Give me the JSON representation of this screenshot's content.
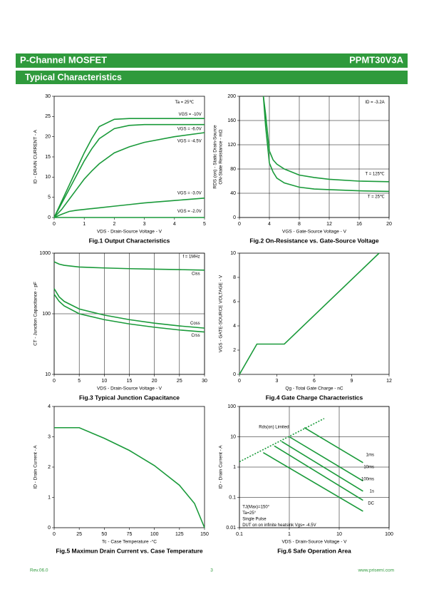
{
  "header": {
    "left": "P-Channel MOSFET",
    "right": "PPMT30V3A"
  },
  "section": "Typical Characteristics",
  "footer": {
    "rev": "Rev.06.0",
    "page": "3",
    "site": "www.prisemi.com"
  },
  "chart_data": [
    {
      "type": "line",
      "title": "Fig.1 Output Characteristics",
      "x_label": "VDS - Drain-Source Voltage - V",
      "y_label": "ID - DRAIN CURRENT - A",
      "xlim": [
        0,
        5
      ],
      "xticks": [
        0,
        1,
        2,
        3,
        4,
        5
      ],
      "ylim": [
        0,
        30
      ],
      "yticks": [
        0,
        5,
        10,
        15,
        20,
        25,
        30
      ],
      "grid": false,
      "annotations": [
        "Ta = 25℃"
      ],
      "x": [
        0,
        0.25,
        0.5,
        0.75,
        1,
        1.25,
        1.5,
        2,
        2.5,
        3,
        4,
        5
      ],
      "series": [
        {
          "name": "VGS = -10V",
          "color": "#1a9a3a",
          "values": [
            0,
            4,
            8,
            12,
            16,
            19.5,
            22.5,
            24.3,
            24.5,
            24.5,
            24.5,
            24.5
          ]
        },
        {
          "name": "VGS = -6.0V",
          "color": "#1a9a3a",
          "values": [
            0,
            3.5,
            7,
            10.5,
            14,
            17,
            19.5,
            22,
            22.8,
            23,
            23,
            23
          ]
        },
        {
          "name": "VGS = -4.5V",
          "color": "#1a9a3a",
          "values": [
            0,
            2,
            4.5,
            7,
            9.5,
            11.5,
            13.3,
            16,
            17.5,
            18.6,
            20,
            21
          ]
        },
        {
          "name": "VGS = -3.0V",
          "color": "#1a9a3a",
          "values": [
            0,
            0.8,
            1.5,
            1.8,
            2,
            2.2,
            2.4,
            2.8,
            3.2,
            3.6,
            4.2,
            4.8
          ]
        },
        {
          "name": "VGS = -2.0V",
          "color": "#1a9a3a",
          "values": [
            0,
            0,
            0,
            0,
            0,
            0,
            0,
            0,
            0,
            0,
            0,
            0
          ]
        }
      ]
    },
    {
      "type": "line",
      "title": "Fig.2 On-Resistance vs. Gate-Source Voltage",
      "x_label": "VGS - Gate-Source Voltage - V",
      "y_label": [
        "RDS (on) - Static Drain-Source",
        "ON-State Resistance - mΩ"
      ],
      "xlim": [
        0,
        20
      ],
      "xticks": [
        0,
        4,
        8,
        12,
        16,
        20
      ],
      "ylim": [
        0,
        200
      ],
      "yticks": [
        0,
        40,
        80,
        120,
        160,
        200
      ],
      "grid": true,
      "annotations": [
        "ID = -3.2A"
      ],
      "x": [
        3.2,
        3.5,
        4,
        4.5,
        5,
        6,
        8,
        10,
        12,
        16,
        20
      ],
      "series": [
        {
          "name": "T = 125℃",
          "color": "#1a9a3a",
          "values": [
            200,
            170,
            110,
            95,
            88,
            80,
            70,
            66,
            63,
            60,
            59
          ]
        },
        {
          "name": "T = 25℃",
          "color": "#1a9a3a",
          "values": [
            200,
            150,
            90,
            75,
            65,
            57,
            50,
            47,
            46,
            44,
            43
          ]
        }
      ]
    },
    {
      "type": "line",
      "title": "Fig.3 Typical Junction Capacitance",
      "x_label": "VDS - Drain-Source Voltage - V",
      "y_label": "CT - Junction Capacitance - pF",
      "xlim": [
        0,
        30
      ],
      "xticks": [
        0,
        5,
        10,
        15,
        20,
        25,
        30
      ],
      "ylim": [
        10,
        1000
      ],
      "ylog": true,
      "yticks": [
        10,
        100,
        1000
      ],
      "grid": true,
      "annotations": [
        "f = 1MHz"
      ],
      "x": [
        0,
        1,
        2,
        5,
        10,
        15,
        20,
        25,
        30
      ],
      "series": [
        {
          "name": "Ciss",
          "color": "#1a9a3a",
          "values": [
            720,
            660,
            630,
            590,
            570,
            555,
            545,
            535,
            525
          ]
        },
        {
          "name": "Coss",
          "color": "#1a9a3a",
          "values": [
            260,
            190,
            160,
            120,
            95,
            80,
            70,
            63,
            58
          ]
        },
        {
          "name": "Crss",
          "color": "#1a9a3a",
          "values": [
            210,
            160,
            135,
            100,
            80,
            68,
            60,
            54,
            50
          ]
        }
      ]
    },
    {
      "type": "line",
      "title": "Fig.4 Gate Charge Characteristics",
      "x_label": "Qg - Total Gate Charge - nC",
      "y_label": "VGS - GATE-SOURCE VOLTAGE - V",
      "xlim": [
        0,
        12
      ],
      "xticks": [
        0,
        3,
        6,
        9,
        12
      ],
      "ylim": [
        0,
        10
      ],
      "yticks": [
        0,
        2,
        4,
        6,
        8,
        10
      ],
      "grid": false,
      "x": [
        0,
        1.4,
        3.6,
        11.2
      ],
      "series": [
        {
          "color": "#1a9a3a",
          "values": [
            0,
            2.5,
            2.5,
            10
          ]
        }
      ]
    },
    {
      "type": "line",
      "title": "Fig.5 Maximun Drain Current vs. Case Temperature",
      "x_label": "Tc - Case Temperature -°C",
      "y_label": "ID - Drain Current - A",
      "xlim": [
        0,
        150
      ],
      "xticks": [
        0,
        25,
        50,
        75,
        100,
        125,
        150
      ],
      "ylim": [
        0,
        4
      ],
      "yticks": [
        0,
        1,
        2,
        3,
        4
      ],
      "grid": false,
      "x": [
        0,
        25,
        50,
        75,
        100,
        125,
        140,
        150
      ],
      "series": [
        {
          "color": "#1a9a3a",
          "values": [
            3.3,
            3.3,
            2.95,
            2.55,
            2.05,
            1.4,
            0.8,
            0
          ]
        }
      ]
    },
    {
      "type": "line",
      "title": "Fig.6 Safe Operation Area",
      "x_label": "VDS - Drain-Source Voltage - V",
      "y_label": "ID - Drain Current - A",
      "xlim": [
        0.1,
        100
      ],
      "xlog": true,
      "xticks": [
        0.1,
        1,
        10,
        100
      ],
      "ylim": [
        0.01,
        100
      ],
      "ylog": true,
      "yticks": [
        0.01,
        0.1,
        1,
        10,
        100
      ],
      "grid": true,
      "annotations": [
        "TJ(Max)=150°",
        "Ta=25°",
        "Single Pulse",
        "DUT on on infinite heatsink Vgs= -4.5V"
      ],
      "series": [
        {
          "name": "Rds(on) Limited",
          "color": "#1a9a3a",
          "dash": true,
          "x": [
            0.1,
            5
          ],
          "values": [
            1.5,
            40
          ]
        },
        {
          "name": "1ms",
          "color": "#1a9a3a",
          "x": [
            2,
            30
          ],
          "values": [
            20,
            1.4
          ]
        },
        {
          "name": "10ms",
          "color": "#1a9a3a",
          "x": [
            1,
            30
          ],
          "values": [
            10,
            0.35
          ]
        },
        {
          "name": "100ms",
          "color": "#1a9a3a",
          "x": [
            0.7,
            30
          ],
          "values": [
            7,
            0.16
          ]
        },
        {
          "name": "1s",
          "color": "#1a9a3a",
          "x": [
            0.5,
            30
          ],
          "values": [
            5,
            0.08
          ]
        },
        {
          "name": "DC",
          "color": "#1a9a3a",
          "x": [
            0.3,
            30
          ],
          "values": [
            3,
            0.035
          ]
        }
      ]
    }
  ]
}
